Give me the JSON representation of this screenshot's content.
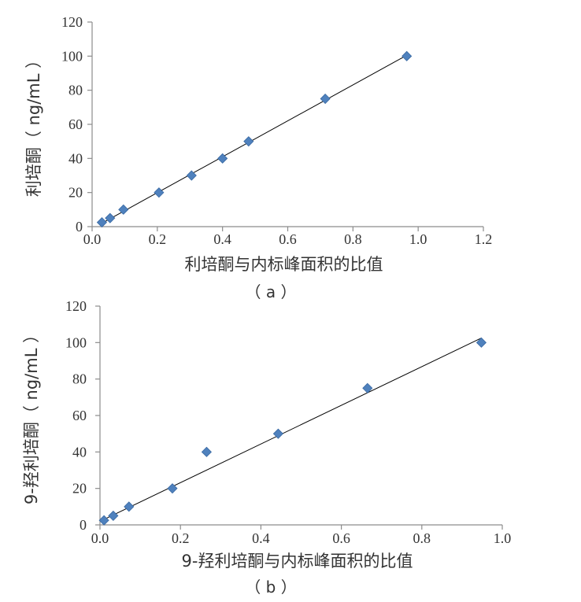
{
  "chart_data": [
    {
      "type": "scatter",
      "caption": "（ a ）",
      "xlabel": "利培酮与内标峰面积的比值",
      "ylabel": "利培酮（ ng/mL ）",
      "xlim": [
        0,
        1.2
      ],
      "ylim": [
        0,
        120
      ],
      "xticks": [
        "0.0",
        "0.2",
        "0.4",
        "0.6",
        "0.8",
        "1.0",
        "1.2"
      ],
      "yticks": [
        "0",
        "20",
        "40",
        "60",
        "80",
        "100",
        "120"
      ],
      "grid": false,
      "legend": "none",
      "marker_color": "#4f81bd",
      "line_color": "#000000",
      "points": [
        {
          "x": 0.03,
          "y": 2.5
        },
        {
          "x": 0.055,
          "y": 5
        },
        {
          "x": 0.096,
          "y": 10
        },
        {
          "x": 0.205,
          "y": 20
        },
        {
          "x": 0.305,
          "y": 30
        },
        {
          "x": 0.4,
          "y": 40
        },
        {
          "x": 0.48,
          "y": 50
        },
        {
          "x": 0.715,
          "y": 75
        },
        {
          "x": 0.965,
          "y": 100
        }
      ],
      "trendline": [
        {
          "x": 0.03,
          "y": 2.0
        },
        {
          "x": 0.965,
          "y": 100.5
        }
      ]
    },
    {
      "type": "scatter",
      "caption": "（ b ）",
      "xlabel": "9-羟利培酮与内标峰面积的比值",
      "ylabel": "9-羟利培酮（ ng/mL ）",
      "xlim": [
        0,
        1.0
      ],
      "ylim": [
        0,
        120
      ],
      "xticks": [
        "0.0",
        "0.2",
        "0.4",
        "0.6",
        "0.8",
        "1.0"
      ],
      "yticks": [
        "0",
        "20",
        "40",
        "60",
        "80",
        "100",
        "120"
      ],
      "grid": false,
      "legend": "none",
      "marker_color": "#4f81bd",
      "line_color": "#000000",
      "points": [
        {
          "x": 0.01,
          "y": 2.5
        },
        {
          "x": 0.033,
          "y": 5
        },
        {
          "x": 0.072,
          "y": 10
        },
        {
          "x": 0.18,
          "y": 20
        },
        {
          "x": 0.265,
          "y": 40
        },
        {
          "x": 0.443,
          "y": 50
        },
        {
          "x": 0.665,
          "y": 75
        },
        {
          "x": 0.948,
          "y": 100
        }
      ],
      "trendline": [
        {
          "x": 0.01,
          "y": 3.0
        },
        {
          "x": 0.948,
          "y": 102.5
        }
      ]
    }
  ]
}
